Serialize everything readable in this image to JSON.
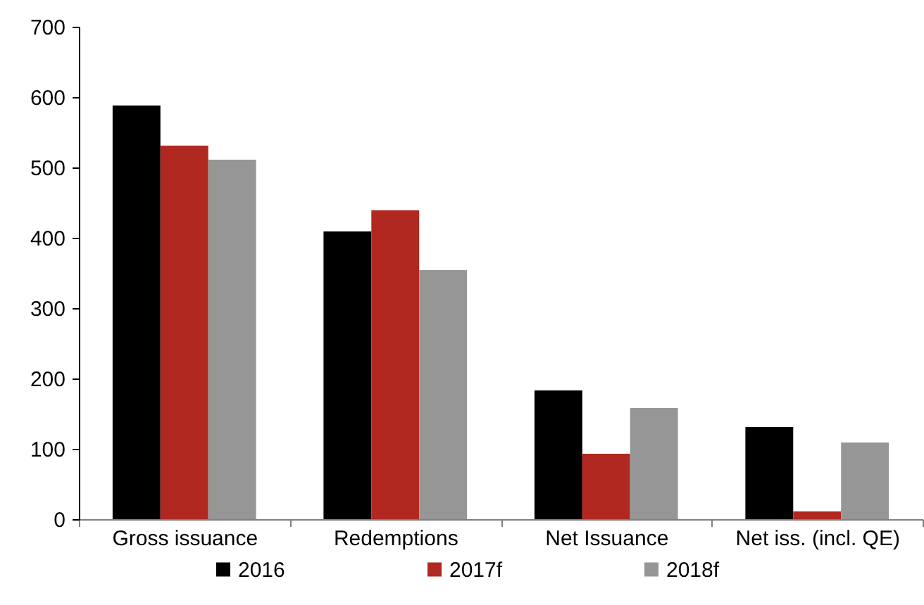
{
  "chart_data": {
    "type": "bar",
    "categories": [
      "Gross issuance",
      "Redemptions",
      "Net Issuance",
      "Net iss. (incl. QE)"
    ],
    "series": [
      {
        "name": "2016",
        "color": "#000000",
        "values": [
          588,
          409,
          183,
          131
        ]
      },
      {
        "name": "2017f",
        "color": "#b0281f",
        "values": [
          531,
          439,
          93,
          11
        ]
      },
      {
        "name": "2018f",
        "color": "#969696",
        "values": [
          511,
          354,
          158,
          109
        ]
      }
    ],
    "ylim": [
      0,
      700
    ],
    "yticks": [
      0,
      100,
      200,
      300,
      400,
      500,
      600,
      700
    ],
    "grid": false,
    "legend": "bottom"
  }
}
